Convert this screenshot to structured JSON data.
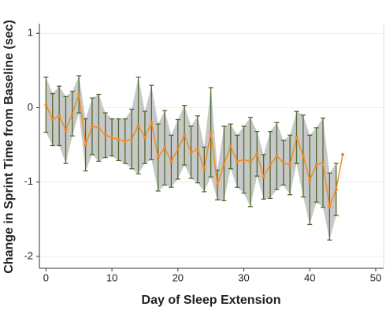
{
  "chart_data": {
    "type": "line",
    "xlabel": "Day of Sleep Extension",
    "ylabel": "Change in Sprint Time from Baseline (sec)",
    "xlim": [
      -1,
      51.2
    ],
    "ylim": [
      -2.16,
      1.13
    ],
    "xticks": [
      0,
      10,
      20,
      30,
      40,
      50
    ],
    "yticks": [
      -2,
      -1,
      0,
      1
    ],
    "grid": true,
    "x": [
      0,
      1,
      2,
      3,
      4,
      5,
      6,
      7,
      8,
      9,
      10,
      11,
      12,
      13,
      14,
      15,
      16,
      17,
      18,
      19,
      20,
      21,
      22,
      23,
      24,
      25,
      26,
      27,
      28,
      29,
      30,
      31,
      32,
      33,
      34,
      35,
      36,
      37,
      38,
      39,
      40,
      41,
      42,
      43,
      44,
      45
    ],
    "series": [
      {
        "color": "#f08a24",
        "error_color": "#4a6b2a",
        "band_color": "#c8c8c8",
        "values": [
          0.04,
          -0.16,
          -0.11,
          -0.3,
          -0.08,
          0.18,
          -0.5,
          -0.25,
          -0.27,
          -0.37,
          -0.4,
          -0.43,
          -0.45,
          -0.42,
          -0.24,
          -0.4,
          -0.2,
          -0.67,
          -0.54,
          -0.72,
          -0.56,
          -0.37,
          -0.6,
          -0.56,
          -0.83,
          -0.33,
          -1.04,
          -0.75,
          -0.52,
          -0.72,
          -0.7,
          -0.73,
          -0.62,
          -0.93,
          -0.77,
          -0.65,
          -0.74,
          -0.77,
          -0.4,
          -0.65,
          -0.97,
          -0.77,
          -0.74,
          -1.33,
          -1.1,
          -0.63
        ],
        "errors": [
          0.37,
          0.35,
          0.4,
          0.45,
          0.3,
          0.25,
          0.35,
          0.38,
          0.45,
          0.3,
          0.25,
          0.28,
          0.3,
          0.4,
          0.65,
          0.35,
          0.5,
          0.45,
          0.5,
          0.35,
          0.4,
          0.4,
          0.35,
          0.45,
          0.3,
          0.6,
          0.2,
          0.5,
          0.3,
          0.35,
          0.45,
          0.6,
          0.3,
          0.3,
          0.45,
          0.45,
          0.3,
          0.4,
          0.35,
          0.55,
          0.6,
          0.5,
          0.6,
          0.45,
          0.35,
          null
        ]
      }
    ]
  }
}
